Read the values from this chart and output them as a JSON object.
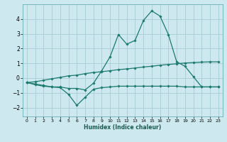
{
  "xlabel": "Humidex (Indice chaleur)",
  "xlim": [
    -0.5,
    23.5
  ],
  "ylim": [
    -2.6,
    5.0
  ],
  "xticks": [
    0,
    1,
    2,
    3,
    4,
    5,
    6,
    7,
    8,
    9,
    10,
    11,
    12,
    13,
    14,
    15,
    16,
    17,
    18,
    19,
    20,
    21,
    22,
    23
  ],
  "yticks": [
    -2,
    -1,
    0,
    1,
    2,
    3,
    4
  ],
  "bg_color": "#cde8ee",
  "grid_color": "#a8cdd5",
  "line_color": "#1a7a6e",
  "line1_y": [
    -0.3,
    -0.45,
    -0.55,
    -0.6,
    -0.65,
    -1.1,
    -1.85,
    -1.3,
    -0.75,
    -0.65,
    -0.6,
    -0.55,
    -0.55,
    -0.55,
    -0.55,
    -0.55,
    -0.55,
    -0.55,
    -0.55,
    -0.6,
    -0.6,
    -0.6,
    -0.6,
    -0.6
  ],
  "line2_y": [
    -0.3,
    -0.4,
    -0.5,
    -0.6,
    -0.6,
    -0.7,
    -0.7,
    -0.8,
    -0.35,
    0.5,
    1.45,
    2.95,
    2.3,
    2.55,
    3.9,
    4.55,
    4.2,
    2.95,
    1.1,
    0.8,
    0.1,
    -0.6,
    -0.6,
    -0.6
  ],
  "line3_y": [
    -0.3,
    -0.25,
    -0.15,
    -0.05,
    0.05,
    0.15,
    0.2,
    0.3,
    0.38,
    0.43,
    0.5,
    0.57,
    0.62,
    0.68,
    0.75,
    0.8,
    0.87,
    0.92,
    0.97,
    1.02,
    1.05,
    1.08,
    1.1,
    1.1
  ]
}
